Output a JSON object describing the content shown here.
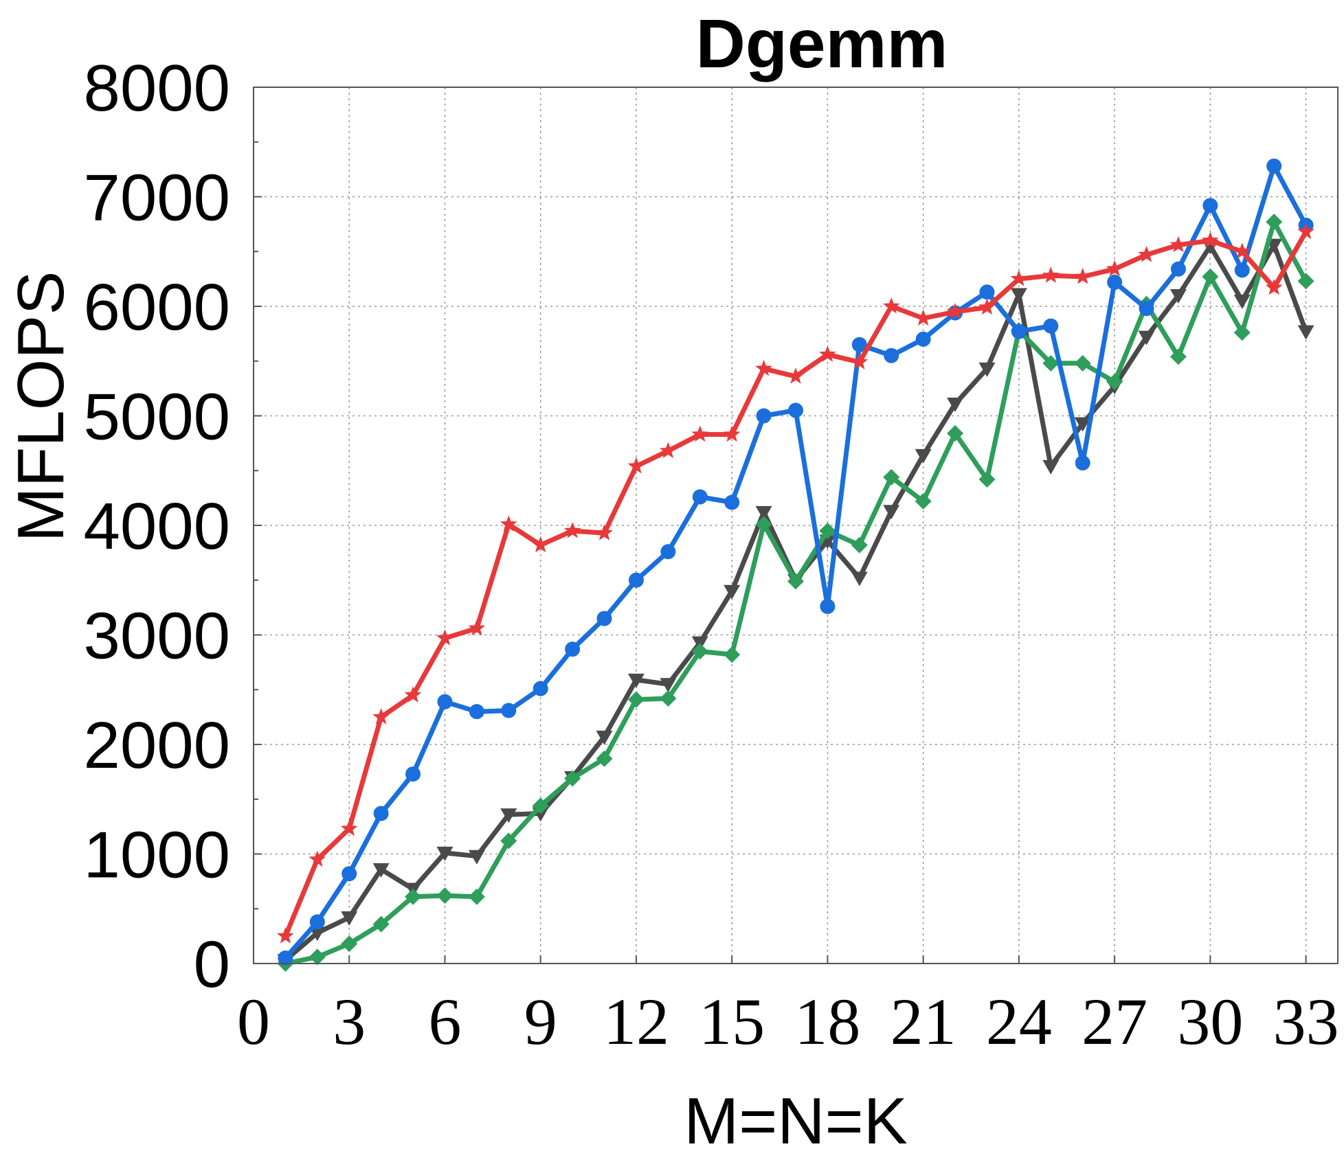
{
  "chart_data": {
    "type": "line",
    "title": "Dgemm",
    "xlabel": "M=N=K",
    "ylabel": "MFLOPS",
    "xlim": [
      0,
      34
    ],
    "ylim": [
      0,
      8000
    ],
    "xticks": [
      "0",
      "3",
      "6",
      "9",
      "12",
      "15",
      "18",
      "21",
      "24",
      "27",
      "30",
      "33"
    ],
    "yticks": [
      "0",
      "1000",
      "2000",
      "3000",
      "4000",
      "5000",
      "6000",
      "7000",
      "8000"
    ],
    "grid": true,
    "x": [
      1,
      2,
      3,
      4,
      5,
      6,
      7,
      8,
      9,
      10,
      11,
      12,
      13,
      14,
      15,
      16,
      17,
      18,
      19,
      20,
      21,
      22,
      23,
      24,
      25,
      26,
      27,
      28,
      29,
      30,
      31,
      32,
      33
    ],
    "series": [
      {
        "color": "#e8393a",
        "marker": "star",
        "values": [
          250,
          950,
          1230,
          2250,
          2450,
          2970,
          3060,
          4010,
          3820,
          3950,
          3930,
          4540,
          4680,
          4830,
          4830,
          5430,
          5360,
          5560,
          5490,
          6000,
          5890,
          5950,
          5990,
          6250,
          6280,
          6270,
          6340,
          6470,
          6560,
          6600,
          6500,
          6170,
          6680
        ]
      },
      {
        "color": "#1a6fdc",
        "marker": "circle",
        "values": [
          50,
          380,
          820,
          1370,
          1730,
          2390,
          2300,
          2310,
          2510,
          2870,
          3150,
          3500,
          3760,
          4260,
          4210,
          5000,
          5050,
          3260,
          5650,
          5550,
          5700,
          5940,
          6130,
          5770,
          5820,
          4570,
          6220,
          5980,
          6340,
          6920,
          6330,
          7280,
          6740
        ]
      },
      {
        "color": "#4a4a4a",
        "marker": "triangle-down",
        "values": [
          30,
          280,
          420,
          860,
          680,
          1010,
          980,
          1360,
          1370,
          1700,
          2070,
          2590,
          2550,
          2930,
          3400,
          4120,
          3500,
          3860,
          3520,
          4130,
          4640,
          5110,
          5430,
          6110,
          4540,
          4930,
          5270,
          5720,
          6100,
          6550,
          6050,
          6560,
          5770
        ]
      },
      {
        "color": "#2e9e5b",
        "marker": "diamond",
        "values": [
          0,
          60,
          180,
          360,
          610,
          620,
          610,
          1120,
          1440,
          1690,
          1870,
          2410,
          2420,
          2850,
          2820,
          4010,
          3490,
          3950,
          3820,
          4440,
          4220,
          4840,
          4420,
          5780,
          5480,
          5480,
          5310,
          6020,
          5540,
          6270,
          5760,
          6770,
          6230
        ]
      }
    ]
  }
}
